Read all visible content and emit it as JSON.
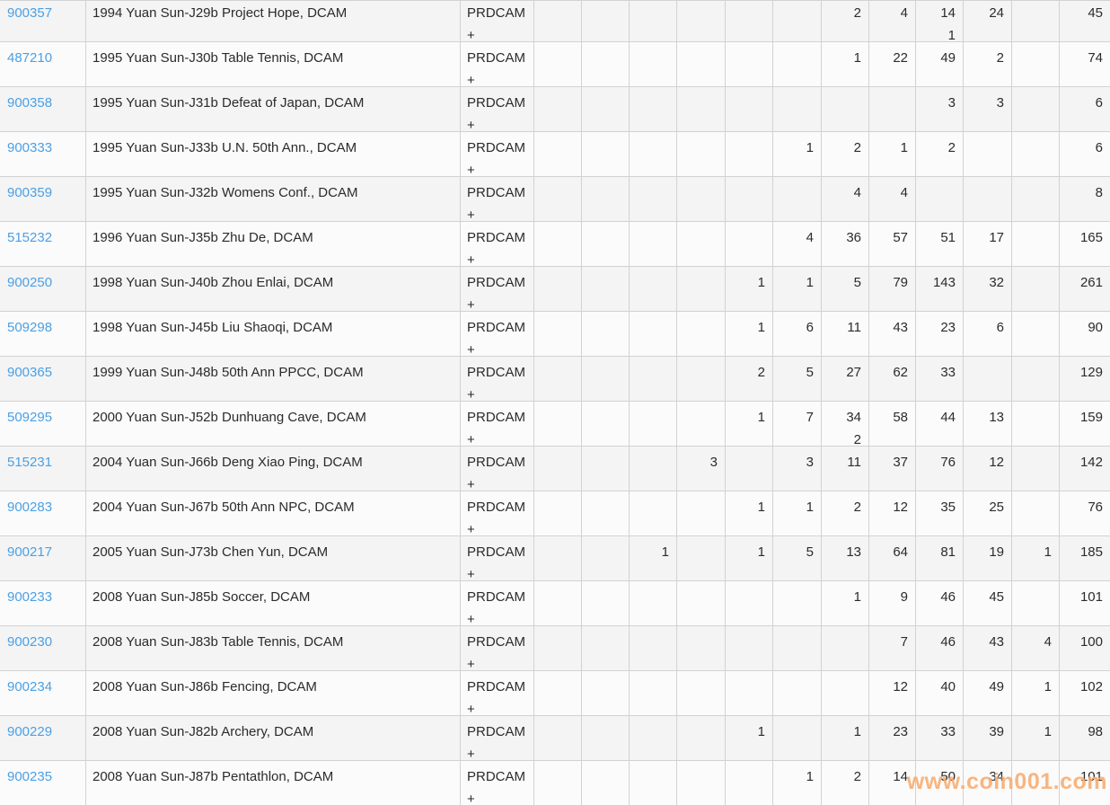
{
  "colors": {
    "link_blue": "#4ba0e5",
    "watermark_orange": "#f7ab6e",
    "row_odd_bg": "#f4f4f4",
    "row_even_bg": "#fbfbfb",
    "border": "#d2d2d2"
  },
  "watermark": "www.coin001.com",
  "table": {
    "rows": [
      {
        "id": "900357",
        "desc": "1994 Yuan Sun-J29b Project Hope, DCAM",
        "designation": "PRDCAM +",
        "cells": [
          "",
          "",
          "",
          "",
          "",
          "",
          "2",
          "4",
          "14\n1",
          "24",
          ""
        ],
        "total": "45"
      },
      {
        "id": "487210",
        "desc": "1995 Yuan Sun-J30b Table Tennis, DCAM",
        "designation": "PRDCAM +",
        "cells": [
          "",
          "",
          "",
          "",
          "",
          "",
          "1",
          "22",
          "49",
          "2",
          ""
        ],
        "total": "74"
      },
      {
        "id": "900358",
        "desc": "1995 Yuan Sun-J31b Defeat of Japan, DCAM",
        "designation": "PRDCAM +",
        "cells": [
          "",
          "",
          "",
          "",
          "",
          "",
          "",
          "",
          "3",
          "3",
          ""
        ],
        "total": "6"
      },
      {
        "id": "900333",
        "desc": "1995 Yuan Sun-J33b U.N. 50th Ann., DCAM",
        "designation": "PRDCAM +",
        "cells": [
          "",
          "",
          "",
          "",
          "",
          "1",
          "2",
          "1",
          "2",
          "",
          ""
        ],
        "total": "6"
      },
      {
        "id": "900359",
        "desc": "1995 Yuan Sun-J32b Womens Conf., DCAM",
        "designation": "PRDCAM +",
        "cells": [
          "",
          "",
          "",
          "",
          "",
          "",
          "4",
          "4",
          "",
          "",
          ""
        ],
        "total": "8"
      },
      {
        "id": "515232",
        "desc": "1996 Yuan Sun-J35b Zhu De, DCAM",
        "designation": "PRDCAM +",
        "cells": [
          "",
          "",
          "",
          "",
          "",
          "4",
          "36",
          "57",
          "51",
          "17",
          ""
        ],
        "total": "165"
      },
      {
        "id": "900250",
        "desc": "1998 Yuan Sun-J40b Zhou Enlai, DCAM",
        "designation": "PRDCAM +",
        "cells": [
          "",
          "",
          "",
          "",
          "1",
          "1",
          "5",
          "79",
          "143",
          "32",
          ""
        ],
        "total": "261"
      },
      {
        "id": "509298",
        "desc": "1998 Yuan Sun-J45b Liu Shaoqi, DCAM",
        "designation": "PRDCAM +",
        "cells": [
          "",
          "",
          "",
          "",
          "1",
          "6",
          "11",
          "43",
          "23",
          "6",
          ""
        ],
        "total": "90"
      },
      {
        "id": "900365",
        "desc": "1999 Yuan Sun-J48b 50th Ann PPCC, DCAM",
        "designation": "PRDCAM +",
        "cells": [
          "",
          "",
          "",
          "",
          "2",
          "5",
          "27",
          "62",
          "33",
          "",
          ""
        ],
        "total": "129"
      },
      {
        "id": "509295",
        "desc": "2000 Yuan Sun-J52b Dunhuang Cave, DCAM",
        "designation": "PRDCAM +",
        "cells": [
          "",
          "",
          "",
          "",
          "1",
          "7",
          "34\n2",
          "58",
          "44",
          "13",
          ""
        ],
        "total": "159"
      },
      {
        "id": "515231",
        "desc": "2004 Yuan Sun-J66b Deng Xiao Ping, DCAM",
        "designation": "PRDCAM +",
        "cells": [
          "",
          "",
          "",
          "3",
          "",
          "3",
          "11",
          "37",
          "76",
          "12",
          ""
        ],
        "total": "142"
      },
      {
        "id": "900283",
        "desc": "2004 Yuan Sun-J67b 50th Ann NPC, DCAM",
        "designation": "PRDCAM +",
        "cells": [
          "",
          "",
          "",
          "",
          "1",
          "1",
          "2",
          "12",
          "35",
          "25",
          ""
        ],
        "total": "76"
      },
      {
        "id": "900217",
        "desc": "2005 Yuan Sun-J73b Chen Yun, DCAM",
        "designation": "PRDCAM +",
        "cells": [
          "",
          "",
          "1",
          "",
          "1",
          "5",
          "13",
          "64",
          "81",
          "19",
          "1"
        ],
        "total": "185"
      },
      {
        "id": "900233",
        "desc": "2008 Yuan Sun-J85b Soccer, DCAM",
        "designation": "PRDCAM +",
        "cells": [
          "",
          "",
          "",
          "",
          "",
          "",
          "1",
          "9",
          "46",
          "45",
          ""
        ],
        "total": "101"
      },
      {
        "id": "900230",
        "desc": "2008 Yuan Sun-J83b Table Tennis, DCAM",
        "designation": "PRDCAM +",
        "cells": [
          "",
          "",
          "",
          "",
          "",
          "",
          "",
          "7",
          "46",
          "43",
          "4"
        ],
        "total": "100"
      },
      {
        "id": "900234",
        "desc": "2008 Yuan Sun-J86b Fencing, DCAM",
        "designation": "PRDCAM +",
        "cells": [
          "",
          "",
          "",
          "",
          "",
          "",
          "",
          "12",
          "40",
          "49",
          "1"
        ],
        "total": "102"
      },
      {
        "id": "900229",
        "desc": "2008 Yuan Sun-J82b Archery, DCAM",
        "designation": "PRDCAM +",
        "cells": [
          "",
          "",
          "",
          "",
          "1",
          "",
          "1",
          "23",
          "33",
          "39",
          "1"
        ],
        "total": "98"
      },
      {
        "id": "900235",
        "desc": "2008 Yuan Sun-J87b Pentathlon, DCAM",
        "designation": "PRDCAM +",
        "cells": [
          "",
          "",
          "",
          "",
          "",
          "1",
          "2",
          "14",
          "50",
          "34",
          ""
        ],
        "total": "101"
      }
    ]
  }
}
